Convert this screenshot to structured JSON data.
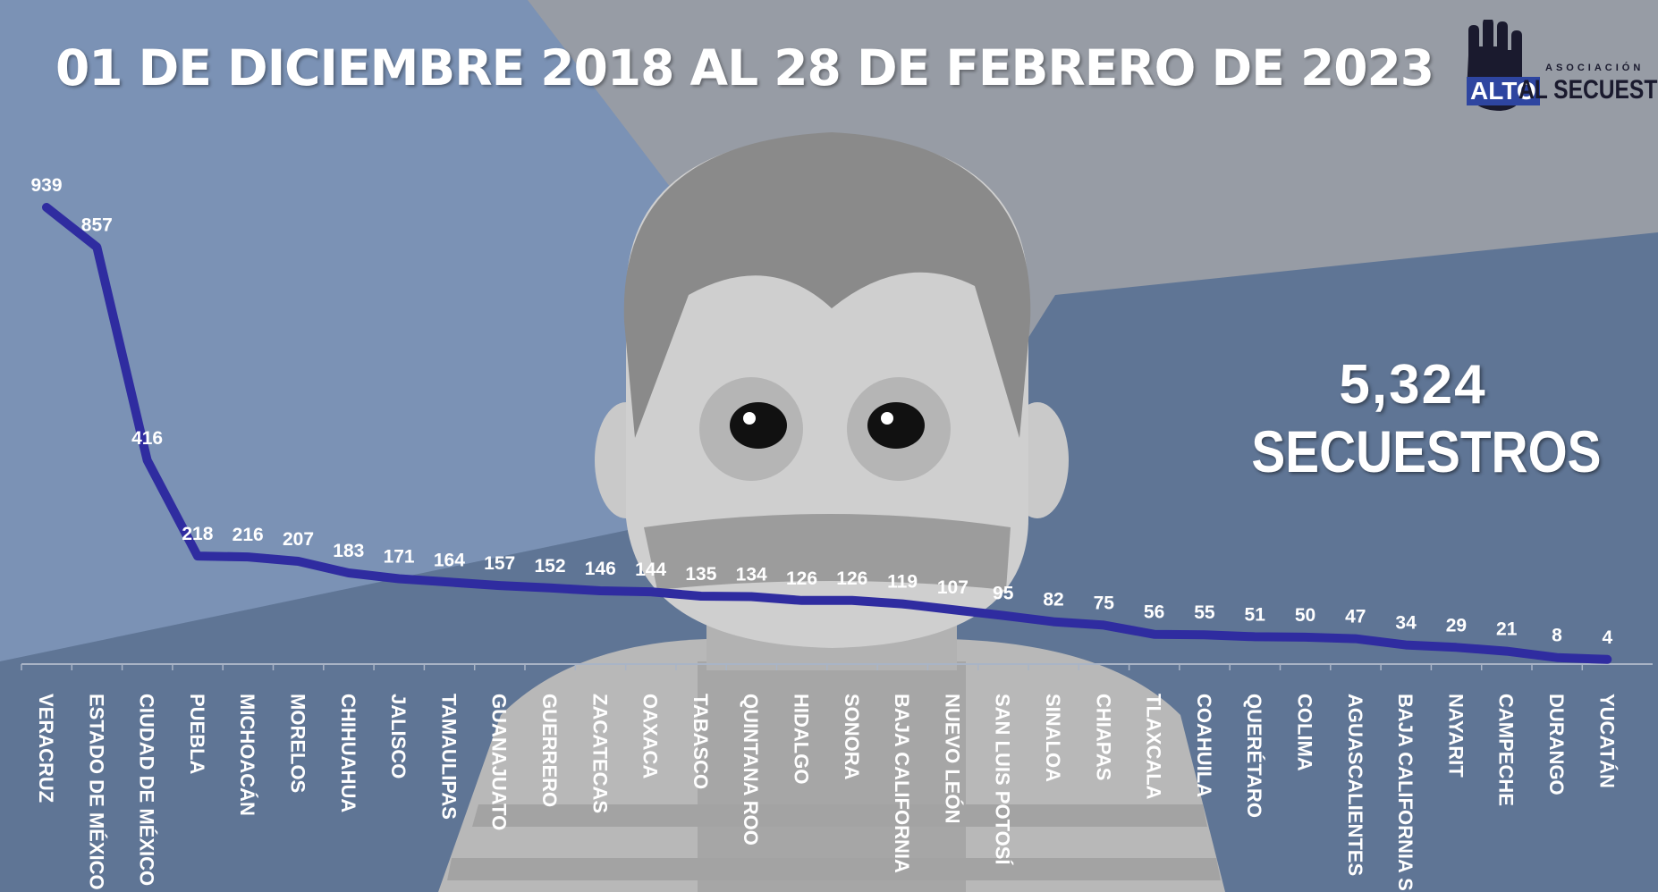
{
  "title": "01 DE DICIEMBRE 2018 AL 28 DE FEBRERO DE 2023",
  "total": {
    "value": "5,324",
    "label": "SECUESTROS"
  },
  "logo": {
    "top": "ASOCIACIÓN",
    "alto": "ALTO",
    "rest": "AL SECUESTRO"
  },
  "colors": {
    "line": "#2f2ca0",
    "text": "#ffffff"
  },
  "chart_data": {
    "type": "line",
    "title": "01 DE DICIEMBRE 2018 AL 28 DE FEBRERO DE 2023",
    "xlabel": "",
    "ylabel": "",
    "ylim": [
      0,
      1000
    ],
    "grid": false,
    "legend": "none",
    "categories": [
      "VERACRUZ",
      "ESTADO DE MÉXICO",
      "CIUDAD DE MÉXICO",
      "PUEBLA",
      "MICHOACÁN",
      "MORELOS",
      "CHIHUAHUA",
      "JALISCO",
      "TAMAULIPAS",
      "GUANAJUATO",
      "GUERRERO",
      "ZACATECAS",
      "OAXACA",
      "TABASCO",
      "QUINTANA ROO",
      "HIDALGO",
      "SONORA",
      "BAJA CALIFORNIA",
      "NUEVO LEÓN",
      "SAN LUIS POTOSÍ",
      "SINALOA",
      "CHIAPAS",
      "TLAXCALA",
      "COAHUILA",
      "QUERÉTARO",
      "COLIMA",
      "AGUASCALIENTES",
      "BAJA CALIFORNIA SUR",
      "NAYARIT",
      "CAMPECHE",
      "DURANGO",
      "YUCATÁN"
    ],
    "series": [
      {
        "values": [
          939,
          857,
          416,
          218,
          216,
          207,
          183,
          171,
          164,
          157,
          152,
          146,
          144,
          135,
          134,
          126,
          126,
          119,
          107,
          95,
          82,
          75,
          56,
          55,
          51,
          50,
          47,
          34,
          29,
          21,
          8,
          4
        ]
      }
    ]
  }
}
